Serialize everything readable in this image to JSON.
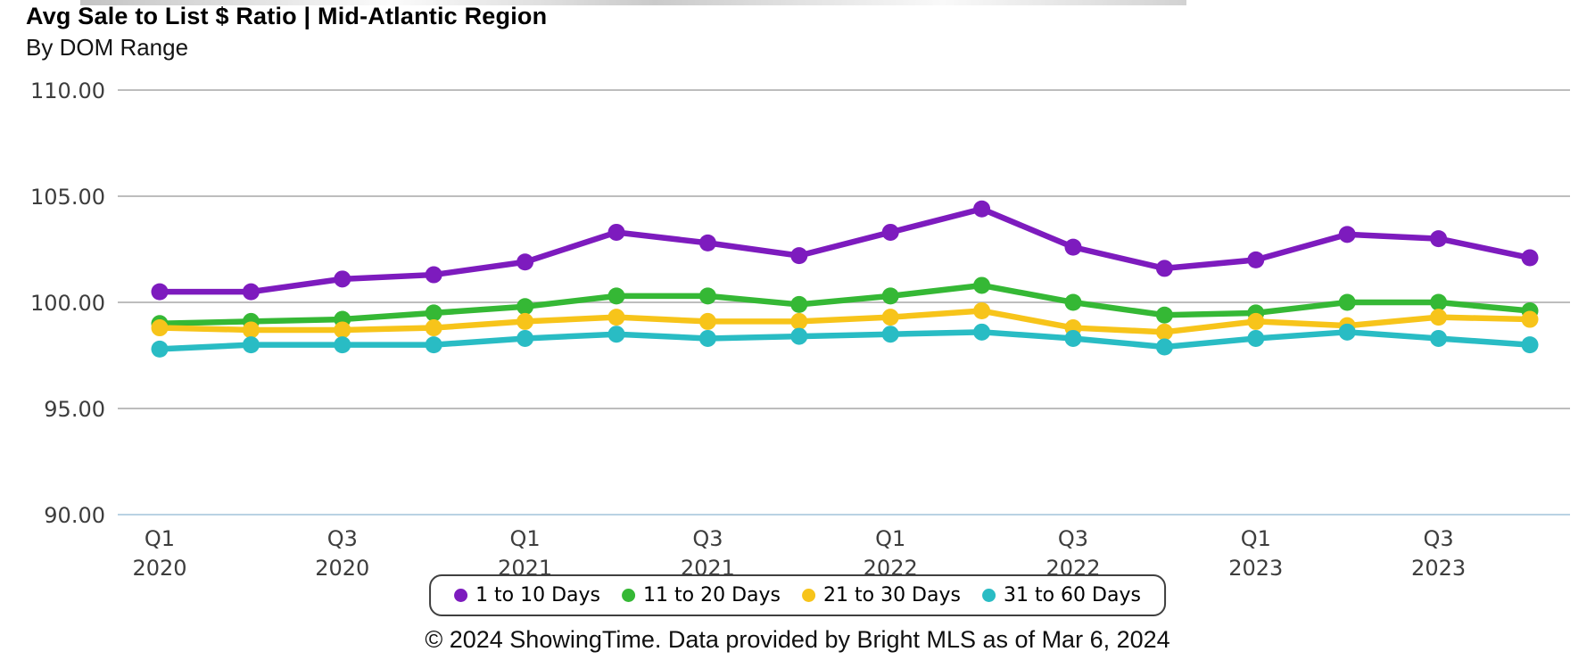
{
  "chart_data": {
    "type": "line",
    "title": "Avg Sale to List $ Ratio | Mid-Atlantic Region",
    "subtitle": "By DOM Range",
    "xlabel": "",
    "ylabel": "",
    "ylim": [
      90,
      110
    ],
    "grid": "horizontal",
    "legend_position": "bottom",
    "grid_color": "#bdbdbd",
    "baseline_color": "#b9d2e3",
    "y_ticks": [
      {
        "value": 110,
        "label": "110.00"
      },
      {
        "value": 105,
        "label": "105.00"
      },
      {
        "value": 100,
        "label": "100.00"
      },
      {
        "value": 95,
        "label": "95.00"
      },
      {
        "value": 90,
        "label": "90.00"
      }
    ],
    "x_ticks": [
      {
        "index": 0,
        "quarter": "Q1",
        "year": "2020"
      },
      {
        "index": 2,
        "quarter": "Q3",
        "year": "2020"
      },
      {
        "index": 4,
        "quarter": "Q1",
        "year": "2021"
      },
      {
        "index": 6,
        "quarter": "Q3",
        "year": "2021"
      },
      {
        "index": 8,
        "quarter": "Q1",
        "year": "2022"
      },
      {
        "index": 10,
        "quarter": "Q3",
        "year": "2022"
      },
      {
        "index": 12,
        "quarter": "Q1",
        "year": "2023"
      },
      {
        "index": 14,
        "quarter": "Q3",
        "year": "2023"
      }
    ],
    "categories": [
      "Q1 2020",
      "Q2 2020",
      "Q3 2020",
      "Q4 2020",
      "Q1 2021",
      "Q2 2021",
      "Q3 2021",
      "Q4 2021",
      "Q1 2022",
      "Q2 2022",
      "Q3 2022",
      "Q4 2022",
      "Q1 2023",
      "Q2 2023",
      "Q3 2023",
      "Q4 2023"
    ],
    "series": [
      {
        "name": "1 to 10 Days",
        "color": "#7D1BBE",
        "values": [
          100.5,
          100.5,
          101.1,
          101.3,
          101.9,
          103.3,
          102.8,
          102.2,
          103.3,
          104.4,
          102.6,
          101.6,
          102.0,
          103.2,
          103.0,
          102.1
        ]
      },
      {
        "name": "11 to 20 Days",
        "color": "#35B835",
        "values": [
          99.0,
          99.1,
          99.2,
          99.5,
          99.8,
          100.3,
          100.3,
          99.9,
          100.3,
          100.8,
          100.0,
          99.4,
          99.5,
          100.0,
          100.0,
          99.6
        ]
      },
      {
        "name": "21 to 30 Days",
        "color": "#F7C41A",
        "values": [
          98.8,
          98.7,
          98.7,
          98.8,
          99.1,
          99.3,
          99.1,
          99.1,
          99.3,
          99.6,
          98.8,
          98.6,
          99.1,
          98.9,
          99.3,
          99.2
        ]
      },
      {
        "name": "31 to 60 Days",
        "color": "#29BCC4",
        "values": [
          97.8,
          98.0,
          98.0,
          98.0,
          98.3,
          98.5,
          98.3,
          98.4,
          98.5,
          98.6,
          98.3,
          97.9,
          98.3,
          98.6,
          98.3,
          98.0
        ]
      }
    ]
  },
  "footer": {
    "text": "© 2024 ShowingTime. Data provided by Bright MLS as of Mar 6, 2024"
  }
}
